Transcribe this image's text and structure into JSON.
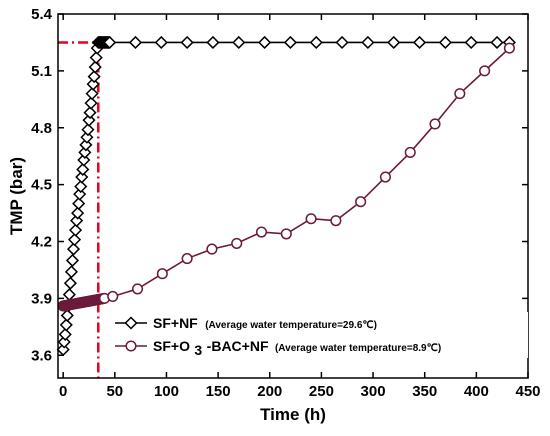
{
  "chart_data": {
    "type": "line",
    "xlabel": "Time (h)",
    "ylabel": "TMP (bar)",
    "xlim": [
      -5,
      450
    ],
    "ylim": [
      3.48,
      5.4
    ],
    "xticks": [
      0,
      50,
      100,
      150,
      200,
      250,
      300,
      350,
      400,
      450
    ],
    "yticks": [
      3.6,
      3.9,
      4.2,
      4.5,
      4.8,
      5.1,
      5.4
    ],
    "grid": false,
    "legend_position": "bottom-right",
    "series": [
      {
        "name": "SF+NF",
        "note": "(Average water temperature=29.6℃)",
        "marker": "diamond",
        "color": "#000000",
        "x": [
          0,
          1,
          2,
          3,
          4,
          5,
          6,
          7,
          8,
          9,
          10,
          11,
          12,
          13,
          14,
          15,
          16,
          17,
          18,
          19,
          20,
          21,
          22,
          23,
          24,
          25,
          26,
          27,
          28,
          29,
          30,
          31,
          32,
          33,
          34,
          35,
          36,
          37,
          38,
          39,
          40,
          41,
          42,
          43,
          44,
          45,
          70,
          95,
          120,
          145,
          170,
          195,
          220,
          245,
          270,
          295,
          320,
          345,
          370,
          395,
          420,
          432
        ],
        "y": [
          3.63,
          3.67,
          3.71,
          3.76,
          3.81,
          3.86,
          3.92,
          3.98,
          4.04,
          4.1,
          4.16,
          4.21,
          4.26,
          4.31,
          4.35,
          4.4,
          4.45,
          4.49,
          4.54,
          4.58,
          4.63,
          4.67,
          4.71,
          4.75,
          4.79,
          4.84,
          4.88,
          4.93,
          4.98,
          5.03,
          5.07,
          5.12,
          5.17,
          5.22,
          5.25,
          5.25,
          5.25,
          5.25,
          5.25,
          5.25,
          5.25,
          5.25,
          5.25,
          5.25,
          5.25,
          5.25,
          5.25,
          5.25,
          5.25,
          5.25,
          5.25,
          5.25,
          5.25,
          5.25,
          5.25,
          5.25,
          5.25,
          5.25,
          5.25,
          5.25,
          5.25,
          5.25
        ]
      },
      {
        "name_parts": [
          "SF+O",
          "3",
          "-BAC+NF"
        ],
        "note": "(Average water temperature=8.9℃)",
        "marker": "circle",
        "color": "#6b1a3c",
        "x": [
          0,
          1,
          2,
          3,
          4,
          5,
          6,
          7,
          8,
          9,
          10,
          11,
          12,
          13,
          14,
          15,
          16,
          17,
          18,
          19,
          20,
          21,
          22,
          23,
          24,
          25,
          26,
          27,
          28,
          29,
          30,
          31,
          32,
          33,
          34,
          35,
          36,
          37,
          38,
          39,
          40,
          48,
          72,
          96,
          120,
          144,
          168,
          192,
          216,
          240,
          264,
          288,
          312,
          336,
          360,
          384,
          408,
          432
        ],
        "y": [
          3.86,
          3.861,
          3.862,
          3.863,
          3.864,
          3.865,
          3.866,
          3.867,
          3.868,
          3.869,
          3.87,
          3.871,
          3.872,
          3.873,
          3.874,
          3.875,
          3.876,
          3.877,
          3.878,
          3.879,
          3.88,
          3.881,
          3.882,
          3.883,
          3.884,
          3.885,
          3.886,
          3.887,
          3.888,
          3.889,
          3.89,
          3.891,
          3.892,
          3.893,
          3.894,
          3.895,
          3.896,
          3.897,
          3.898,
          3.899,
          3.9,
          3.91,
          3.95,
          4.03,
          4.11,
          4.16,
          4.19,
          4.25,
          4.24,
          4.32,
          4.31,
          4.41,
          4.54,
          4.67,
          4.82,
          4.98,
          5.1,
          5.22
        ]
      }
    ],
    "reference_lines": {
      "color": "#e8001c",
      "vertical_x": 34,
      "horizontal_y": 5.25
    }
  }
}
